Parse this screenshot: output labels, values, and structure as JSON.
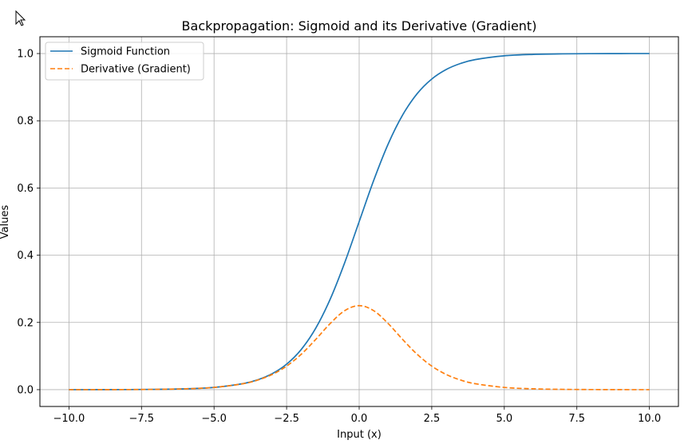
{
  "chart_data": {
    "type": "line",
    "title": "Backpropagation: Sigmoid and its Derivative (Gradient)",
    "xlabel": "Input (x)",
    "ylabel": "Values",
    "xlim": [
      -11.0,
      11.0
    ],
    "ylim": [
      -0.05,
      1.05
    ],
    "xticks": [
      -10.0,
      -7.5,
      -5.0,
      -2.5,
      0.0,
      2.5,
      5.0,
      7.5,
      10.0
    ],
    "xtick_labels": [
      "−10.0",
      "−7.5",
      "−5.0",
      "−2.5",
      "0.0",
      "2.5",
      "5.0",
      "7.5",
      "10.0"
    ],
    "yticks": [
      0.0,
      0.2,
      0.4,
      0.6,
      0.8,
      1.0
    ],
    "ytick_labels": [
      "0.0",
      "0.2",
      "0.4",
      "0.6",
      "0.8",
      "1.0"
    ],
    "grid": true,
    "legend_position": "top-left",
    "series": [
      {
        "name": "Sigmoid Function",
        "color": "#1f77b4",
        "style": "solid",
        "x": [
          -10,
          -9,
          -8,
          -7,
          -6,
          -5,
          -4,
          -3.5,
          -3,
          -2.5,
          -2,
          -1.5,
          -1,
          -0.5,
          0,
          0.5,
          1,
          1.5,
          2,
          2.5,
          3,
          3.5,
          4,
          5,
          6,
          7,
          8,
          9,
          10
        ],
        "y": [
          5e-05,
          0.00012,
          0.00034,
          0.00091,
          0.00247,
          0.00669,
          0.01799,
          0.02931,
          0.04743,
          0.07586,
          0.1192,
          0.18243,
          0.26894,
          0.37754,
          0.5,
          0.62246,
          0.73106,
          0.81757,
          0.8808,
          0.92414,
          0.95257,
          0.97069,
          0.98201,
          0.99331,
          0.99753,
          0.99909,
          0.99966,
          0.99988,
          0.99995
        ]
      },
      {
        "name": "Derivative (Gradient)",
        "color": "#ff7f0e",
        "style": "dashed",
        "x": [
          -10,
          -9,
          -8,
          -7,
          -6,
          -5,
          -4,
          -3.5,
          -3,
          -2.5,
          -2,
          -1.5,
          -1,
          -0.5,
          0,
          0.5,
          1,
          1.5,
          2,
          2.5,
          3,
          3.5,
          4,
          5,
          6,
          7,
          8,
          9,
          10
        ],
        "y": [
          5e-05,
          0.00012,
          0.00034,
          0.00091,
          0.00247,
          0.00665,
          0.01766,
          0.02845,
          0.04518,
          0.07011,
          0.10499,
          0.14915,
          0.19661,
          0.235,
          0.25,
          0.235,
          0.19661,
          0.14915,
          0.10499,
          0.07011,
          0.04518,
          0.02845,
          0.01766,
          0.00665,
          0.00247,
          0.00091,
          0.00034,
          0.00012,
          5e-05
        ]
      }
    ]
  }
}
